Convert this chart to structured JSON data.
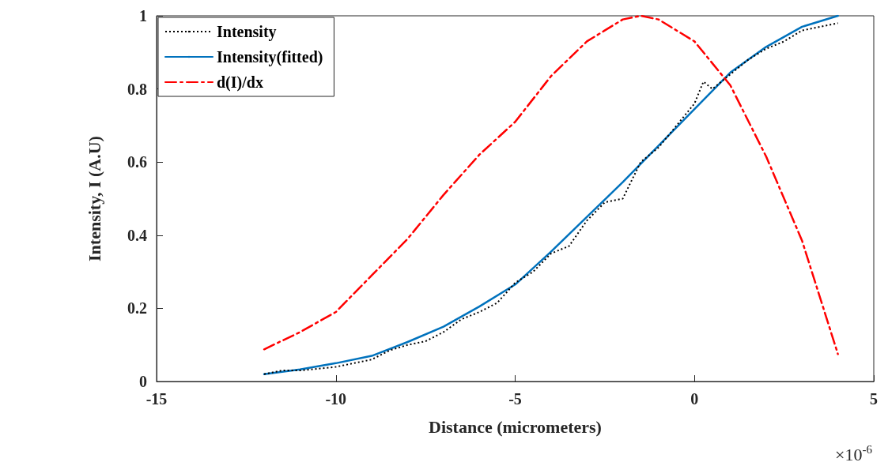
{
  "chart_data": {
    "type": "line",
    "xlabel": "Distance (micrometers)",
    "ylabel": "Intensity, I (A.U)",
    "xlim": [
      -15,
      5
    ],
    "xticks": [
      -15,
      -10,
      -5,
      0,
      5
    ],
    "ylim": [
      0,
      1
    ],
    "yticks": [
      0,
      0.2,
      0.4,
      0.6,
      0.8,
      1
    ],
    "grid": false,
    "legend": "top left",
    "marker": "none",
    "annotations": [
      "×10$^{-6}$"
    ],
    "series": [
      {
        "name": "Intensity",
        "color": "#000000",
        "line_style": "dotted",
        "x": [
          -12,
          -11.5,
          -11,
          -10.5,
          -10,
          -9.5,
          -9,
          -8.5,
          -8,
          -7.5,
          -7,
          -6.5,
          -6,
          -5.5,
          -5,
          -4.5,
          -4,
          -3.5,
          -3,
          -2.5,
          -2,
          -1.5,
          -1,
          -0.5,
          0,
          0.25,
          0.5,
          1,
          1.5,
          2,
          2.5,
          3,
          3.5,
          4
        ],
        "values": [
          0.02,
          0.03,
          0.03,
          0.035,
          0.04,
          0.05,
          0.06,
          0.085,
          0.1,
          0.11,
          0.135,
          0.17,
          0.19,
          0.215,
          0.27,
          0.3,
          0.35,
          0.37,
          0.44,
          0.49,
          0.5,
          0.6,
          0.64,
          0.7,
          0.76,
          0.82,
          0.8,
          0.84,
          0.88,
          0.91,
          0.93,
          0.96,
          0.97,
          0.98
        ]
      },
      {
        "name": "Intensity(fitted)",
        "color": "#0072bd",
        "line_style": "solid",
        "x": [
          -12,
          -11,
          -10,
          -9,
          -8,
          -7,
          -6,
          -5,
          -4,
          -3,
          -2,
          -1,
          0,
          1,
          2,
          3,
          4
        ],
        "values": [
          0.02,
          0.033,
          0.05,
          0.07,
          0.108,
          0.15,
          0.205,
          0.265,
          0.355,
          0.45,
          0.545,
          0.645,
          0.745,
          0.845,
          0.915,
          0.97,
          1.0
        ]
      },
      {
        "name": "d(I)/dx",
        "color": "#ff0000",
        "line_style": "dashed",
        "x": [
          -12,
          -11,
          -10,
          -9,
          -8,
          -7,
          -6,
          -5,
          -4,
          -3,
          -2,
          -1.5,
          -1,
          0,
          1,
          2,
          3,
          4
        ],
        "values": [
          0.088,
          0.135,
          0.19,
          0.29,
          0.39,
          0.51,
          0.62,
          0.71,
          0.835,
          0.93,
          0.99,
          1.0,
          0.99,
          0.93,
          0.81,
          0.615,
          0.385,
          0.075
        ]
      }
    ]
  }
}
